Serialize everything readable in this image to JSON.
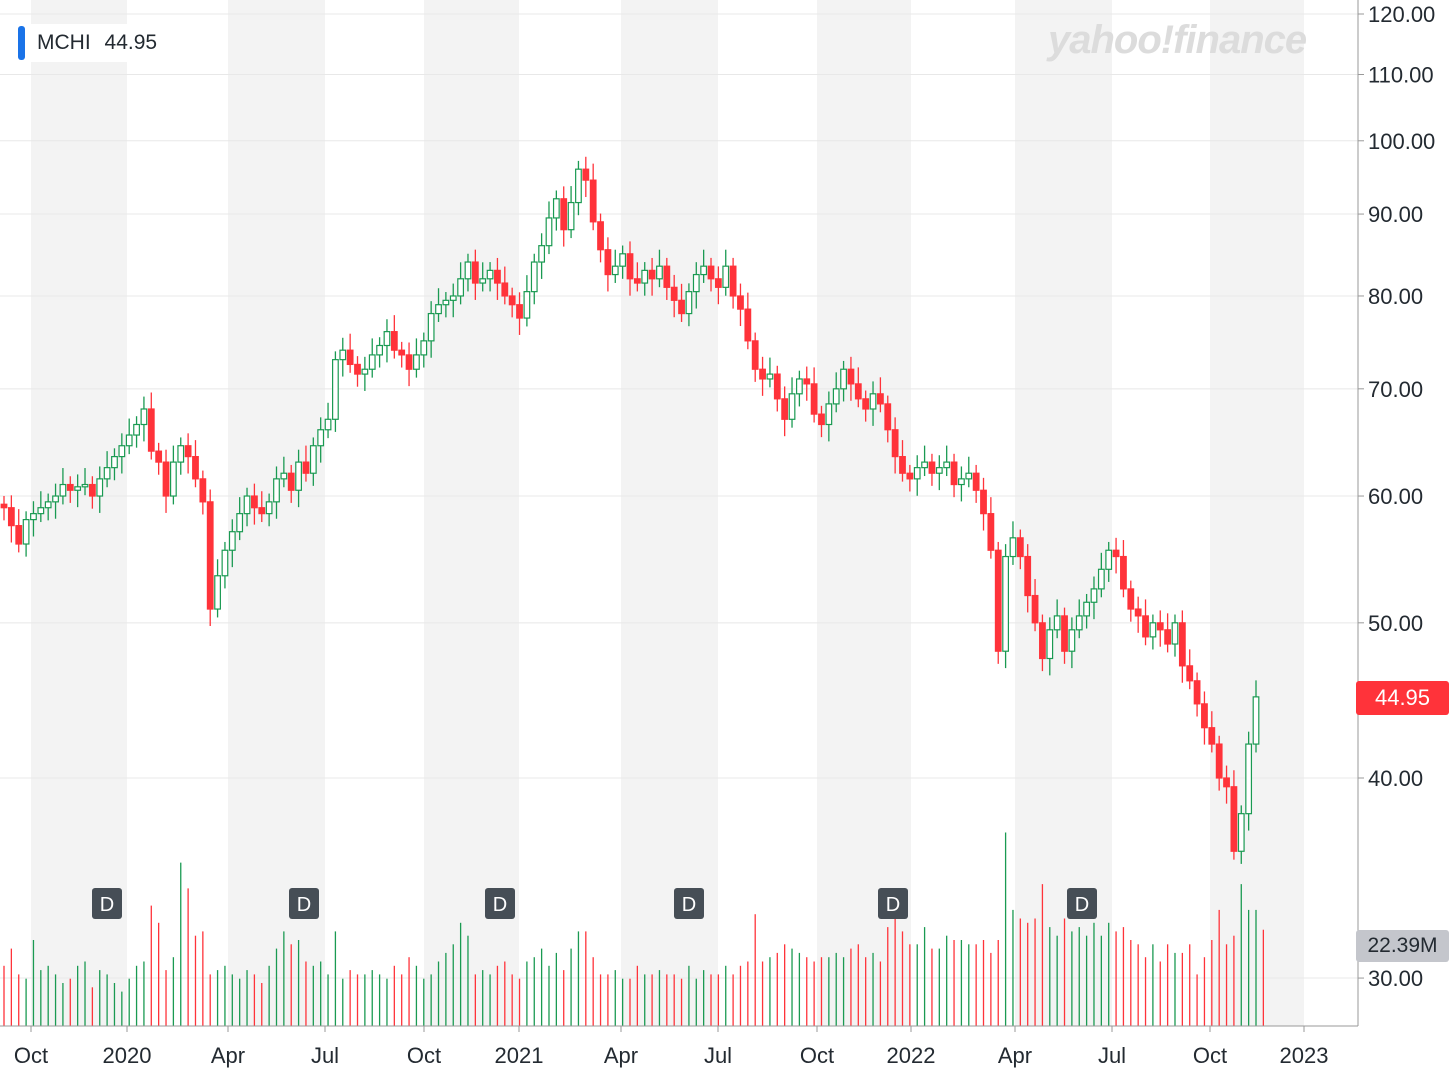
{
  "header": {
    "ticker": "MCHI",
    "last_price": "44.95",
    "watermark": "yahoo!finance"
  },
  "badges": {
    "price": "44.95",
    "volume": "22.39M"
  },
  "colors": {
    "up": "#1a9a52",
    "down": "#ff333a",
    "accent": "#1a73e8",
    "grid": "#e8e8e8",
    "band": "#f3f3f3"
  },
  "chart_data": {
    "type": "candlestick",
    "scale": "log",
    "ylim": [
      26,
      120
    ],
    "y_ticks": [
      "120.00",
      "110.00",
      "100.00",
      "90.00",
      "80.00",
      "70.00",
      "60.00",
      "50.00",
      "40.00",
      "30.00"
    ],
    "x_ticks": [
      "Oct",
      "2020",
      "Apr",
      "Jul",
      "Oct",
      "2021",
      "Apr",
      "Jul",
      "Oct",
      "2022",
      "Apr",
      "Jul",
      "Oct",
      "2023"
    ],
    "dividend_marker": "D",
    "dividends": [
      "2019-12",
      "2020-06",
      "2020-12",
      "2021-06",
      "2021-12",
      "2022-06"
    ],
    "last_volume": "22.39M",
    "closes": [
      59.0,
      57.5,
      56.0,
      58.0,
      58.5,
      59.0,
      59.5,
      60.0,
      61.0,
      60.5,
      60.8,
      61.0,
      60.0,
      61.5,
      62.5,
      63.5,
      64.5,
      65.5,
      66.5,
      68.0,
      64.0,
      63.0,
      60.0,
      63.0,
      64.5,
      63.5,
      61.5,
      59.5,
      51.0,
      53.5,
      55.5,
      57.0,
      58.5,
      60.0,
      59.0,
      58.5,
      59.5,
      61.5,
      62.0,
      60.5,
      63.0,
      62.0,
      64.5,
      66.0,
      67.0,
      73.0,
      74.0,
      72.5,
      71.5,
      72.0,
      73.5,
      74.5,
      76.0,
      74.0,
      73.5,
      72.0,
      73.5,
      75.0,
      78.0,
      79.0,
      79.5,
      80.0,
      82.0,
      84.0,
      81.5,
      82.0,
      83.0,
      81.5,
      80.0,
      79.0,
      77.5,
      80.5,
      84.0,
      86.0,
      89.5,
      92.0,
      88.0,
      91.5,
      96.0,
      94.5,
      89.0,
      85.5,
      82.5,
      83.5,
      85.0,
      82.0,
      81.5,
      83.0,
      82.0,
      83.5,
      81.0,
      79.5,
      78.0,
      80.5,
      82.5,
      83.5,
      82.0,
      81.0,
      83.5,
      80.0,
      78.5,
      75.0,
      72.0,
      71.0,
      71.5,
      69.0,
      67.0,
      69.5,
      71.0,
      70.5,
      67.5,
      66.5,
      68.5,
      70.0,
      72.0,
      70.5,
      69.0,
      68.0,
      69.5,
      68.5,
      66.0,
      63.5,
      62.0,
      61.5,
      62.5,
      63.0,
      62.0,
      62.5,
      63.0,
      61.0,
      61.5,
      62.0,
      60.5,
      58.5,
      55.5,
      48.0,
      55.0,
      56.5,
      55.0,
      52.0,
      50.0,
      47.5,
      49.5,
      50.5,
      48.0,
      49.5,
      50.5,
      51.5,
      52.5,
      54.0,
      55.5,
      55.0,
      52.5,
      51.0,
      50.5,
      49.0,
      50.0,
      49.5,
      48.5,
      50.0,
      47.0,
      46.0,
      44.5,
      43.0,
      42.0,
      40.0,
      39.5,
      36.0,
      38.0,
      42.0,
      44.95
    ],
    "volumes_m": [
      14,
      18,
      12,
      11,
      20,
      13,
      14,
      12,
      10,
      11,
      14,
      15,
      9,
      13,
      12,
      10,
      8,
      11,
      14,
      15,
      28,
      24,
      13,
      16,
      38,
      32,
      21,
      22,
      12,
      13,
      14,
      12,
      11,
      13,
      12,
      10,
      14,
      18,
      22,
      19,
      20,
      15,
      14,
      15,
      12,
      22,
      11,
      13,
      12,
      12,
      13,
      12,
      11,
      14,
      12,
      16,
      14,
      11,
      12,
      15,
      17,
      19,
      24,
      21,
      12,
      13,
      12,
      14,
      15,
      12,
      11,
      15,
      16,
      18,
      14,
      17,
      13,
      18,
      22,
      22,
      16,
      12,
      12,
      13,
      11,
      11,
      14,
      12,
      12,
      13,
      12,
      12,
      11,
      14,
      11,
      13,
      12,
      12,
      14,
      12,
      14,
      15,
      26,
      15,
      16,
      17,
      19,
      18,
      17,
      16,
      15,
      16,
      16,
      17,
      16,
      18,
      19,
      16,
      17,
      15,
      23,
      26,
      22,
      19,
      19,
      23,
      18,
      18,
      21,
      20,
      20,
      19,
      19,
      20,
      17,
      20,
      45,
      27,
      25,
      24,
      25,
      33,
      23,
      21,
      25,
      22,
      23,
      21,
      24,
      21,
      24,
      22,
      23,
      20,
      19,
      16,
      19,
      15,
      19,
      17,
      17,
      19,
      12,
      16,
      20,
      27,
      19,
      21,
      33,
      27,
      27,
      22.39
    ]
  }
}
